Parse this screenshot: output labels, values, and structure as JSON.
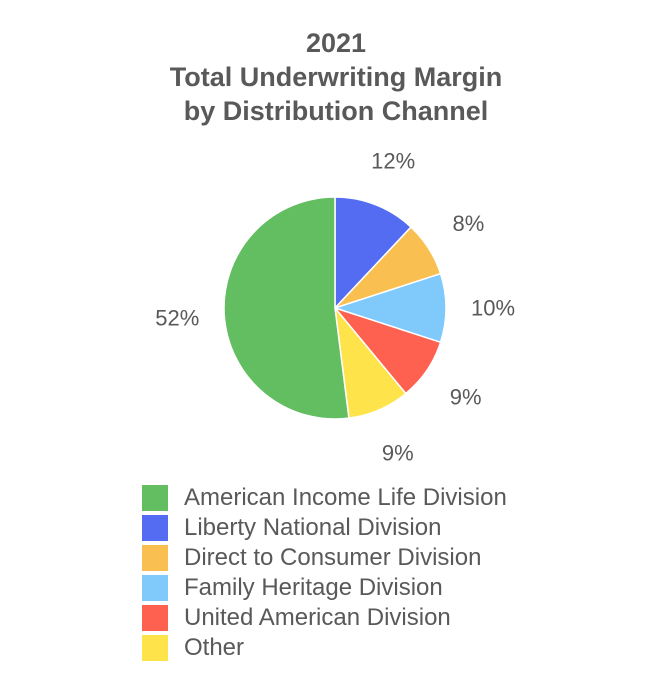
{
  "chart_data": {
    "type": "pie",
    "title_lines": [
      "2021",
      "Total Underwriting Margin",
      "by Distribution Channel"
    ],
    "slices": [
      {
        "name": "American Income Life Division",
        "value": 52,
        "label": "52%",
        "color": "#63BE62"
      },
      {
        "name": "Liberty National Division",
        "value": 12,
        "label": "12%",
        "color": "#546CF2"
      },
      {
        "name": "Direct to Consumer Division",
        "value": 8,
        "label": "8%",
        "color": "#F9BF50"
      },
      {
        "name": "Family Heritage Division",
        "value": 10,
        "label": "10%",
        "color": "#80C9FB"
      },
      {
        "name": "United American Division",
        "value": 9,
        "label": "9%",
        "color": "#FE6150"
      },
      {
        "name": "Other",
        "value": 9,
        "label": "9%",
        "color": "#FEE44A"
      }
    ],
    "legend_position": "bottom",
    "slice_order": "clockwise from top, American Income Life Division drawn on the left half"
  }
}
